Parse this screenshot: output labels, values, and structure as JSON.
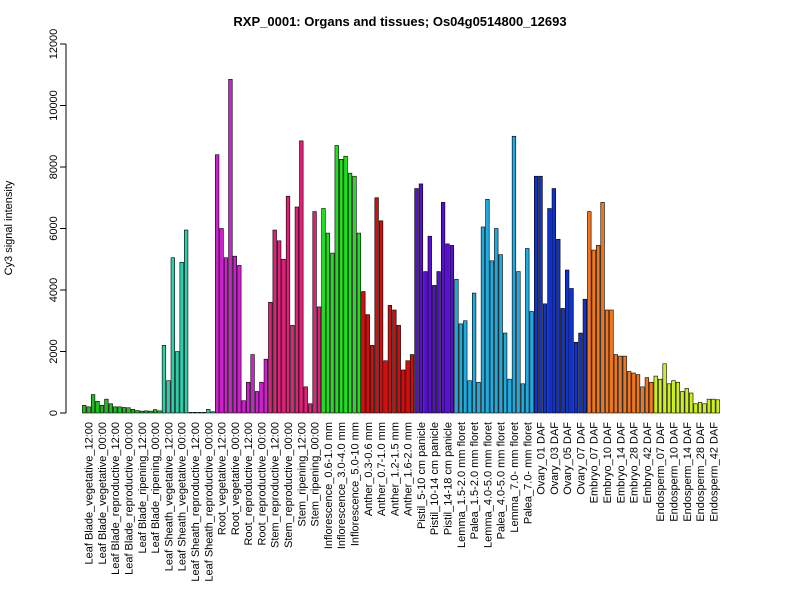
{
  "chart_data": {
    "type": "bar",
    "title": "RXP_0001: Organs and tissues; Os04g0514800_12693",
    "ylabel": "Cy3 signal intensity",
    "xlabel": "",
    "ylim": [
      0,
      12000
    ],
    "yticks": [
      0,
      2000,
      4000,
      6000,
      8000,
      10000,
      12000
    ],
    "ytick_labels": [
      "0",
      "2000",
      "4000",
      "6000",
      "8000",
      "10000",
      "12000"
    ],
    "grid": false,
    "groups": [
      {
        "label": "Leaf Blade_vegetative_12:00",
        "color": "#22bb22",
        "values": [
          250,
          200,
          600
        ]
      },
      {
        "label": "Leaf Blade_vegetative_00:00",
        "color": "#22bb22",
        "values": [
          380,
          250,
          450
        ]
      },
      {
        "label": "Leaf Blade_reproductive_12:00",
        "color": "#22bb22",
        "values": [
          300,
          200,
          200
        ]
      },
      {
        "label": "Leaf Blade_reproductive_00:00",
        "color": "#22bb22",
        "values": [
          180,
          170,
          120
        ]
      },
      {
        "label": "Leaf Blade_ripening_12:00",
        "color": "#22bb22",
        "values": [
          80,
          60,
          70
        ]
      },
      {
        "label": "Leaf Blade_ripening_00:00",
        "color": "#22bb22",
        "values": [
          60,
          110,
          70
        ]
      },
      {
        "label": "Leaf Sheath_vegetative_12:00",
        "color": "#33ccaa",
        "values": [
          2200,
          1050,
          5050
        ]
      },
      {
        "label": "Leaf Sheath_vegetative_00:00",
        "color": "#33ccaa",
        "values": [
          2000,
          4900,
          5950
        ]
      },
      {
        "label": "Leaf Sheath_reproductive_12:00",
        "color": "#33ccaa",
        "values": [
          20,
          20,
          20
        ]
      },
      {
        "label": "Leaf Sheath_reproductive_00:00",
        "color": "#33ccaa",
        "values": [
          20,
          120,
          40
        ]
      },
      {
        "label": "Root_vegetative_12:00",
        "color": "#cc22cc",
        "values": [
          8400,
          6000,
          5050
        ]
      },
      {
        "label": "Root_vegetative_00:00",
        "color": "#cc22cc",
        "values": [
          10850,
          5100,
          4800
        ]
      },
      {
        "label": "Root_reproductive_12:00",
        "color": "#cc22cc",
        "values": [
          400,
          1000,
          1900
        ]
      },
      {
        "label": "Root_reproductive_00:00",
        "color": "#cc22cc",
        "values": [
          700,
          1000,
          1750
        ]
      },
      {
        "label": "Stem_reproductive_12:00",
        "color": "#dd2277",
        "values": [
          3600,
          5950,
          5600
        ]
      },
      {
        "label": "Stem_reproductive_00:00",
        "color": "#dd2277",
        "values": [
          5000,
          7050,
          2850
        ]
      },
      {
        "label": "Stem_ripening_12:00",
        "color": "#dd2277",
        "values": [
          6700,
          8850,
          850
        ]
      },
      {
        "label": "Stem_ripening_00:00",
        "color": "#dd2277",
        "values": [
          300,
          6550,
          3450
        ]
      },
      {
        "label": "Inflorescence_0.6-1.0 mm",
        "color": "#22dd22",
        "values": [
          6650,
          5850,
          5200
        ]
      },
      {
        "label": "Inflorescence_3.0-4.0 mm",
        "color": "#22dd22",
        "values": [
          8700,
          8250,
          8350
        ]
      },
      {
        "label": "Inflorescence_5.0-10 mm",
        "color": "#22dd22",
        "values": [
          7800,
          7700,
          5850
        ]
      },
      {
        "label": "Anther_0.3-0.6 mm",
        "color": "#cc1111",
        "values": [
          3950,
          3200,
          2200
        ]
      },
      {
        "label": "Anther_0.7-1.0 mm",
        "color": "#cc1111",
        "values": [
          7000,
          6250,
          1700
        ]
      },
      {
        "label": "Anther_1.2-1.5 mm",
        "color": "#cc1111",
        "values": [
          3500,
          3350,
          2850
        ]
      },
      {
        "label": "Anther_1.6-2.0 mm",
        "color": "#cc1111",
        "values": [
          1400,
          1700,
          1900
        ]
      },
      {
        "label": "Pistil_5-10 cm panicle",
        "color": "#5511cc",
        "values": [
          7300,
          7450,
          4600
        ]
      },
      {
        "label": "Pistil_10-14 cm panicle",
        "color": "#5511cc",
        "values": [
          5750,
          4150,
          4600
        ]
      },
      {
        "label": "Pistil_14-18 cm panicle",
        "color": "#5511cc",
        "values": [
          6850,
          5500,
          5450
        ]
      },
      {
        "label": "Lemma_1.5-2.0 mm floret",
        "color": "#22aadd",
        "values": [
          4350,
          2900,
          3000
        ]
      },
      {
        "label": "Palea_1.5-2.0 mm floret",
        "color": "#22aadd",
        "values": [
          1050,
          3900,
          1000
        ]
      },
      {
        "label": "Lemma_4.0-5.0 mm floret",
        "color": "#22aadd",
        "values": [
          6050,
          6950,
          4950
        ]
      },
      {
        "label": "Palea_4.0-5.0 mm floret",
        "color": "#22aadd",
        "values": [
          6000,
          5150,
          2600
        ]
      },
      {
        "label": "Lemma_7.0- mm floret",
        "color": "#22aadd",
        "values": [
          1100,
          9000,
          4600
        ]
      },
      {
        "label": "Palea_7.0- mm floret",
        "color": "#22aadd",
        "values": [
          950,
          5350,
          3300
        ]
      },
      {
        "label": "Ovary_01 DAF",
        "color": "#1133cc",
        "values": [
          7700,
          7700,
          3550
        ]
      },
      {
        "label": "Ovary_03 DAF",
        "color": "#1133cc",
        "values": [
          6650,
          7300,
          5650
        ]
      },
      {
        "label": "Ovary_05 DAF",
        "color": "#1133cc",
        "values": [
          3400,
          4650,
          4050
        ]
      },
      {
        "label": "Ovary_07 DAF",
        "color": "#1133cc",
        "values": [
          2300,
          2600,
          3700
        ]
      },
      {
        "label": "Embryo_07 DAF",
        "color": "#ee7722",
        "values": [
          6550,
          5300,
          5450
        ]
      },
      {
        "label": "Embryo_10 DAF",
        "color": "#ee7722",
        "values": [
          6850,
          3350,
          3350
        ]
      },
      {
        "label": "Embryo_14 DAF",
        "color": "#ee7722",
        "values": [
          1900,
          1850,
          1850
        ]
      },
      {
        "label": "Embryo_28 DAF",
        "color": "#ee7722",
        "values": [
          1350,
          1300,
          1250
        ]
      },
      {
        "label": "Embryo_42 DAF",
        "color": "#ee7722",
        "values": [
          850,
          1150,
          1000
        ]
      },
      {
        "label": "Endosperm_07 DAF",
        "color": "#ccee22",
        "values": [
          1200,
          1100,
          1600
        ]
      },
      {
        "label": "Endosperm_10 DAF",
        "color": "#ccee22",
        "values": [
          950,
          1050,
          1000
        ]
      },
      {
        "label": "Endosperm_14 DAF",
        "color": "#ccee22",
        "values": [
          700,
          800,
          650
        ]
      },
      {
        "label": "Endosperm_28 DAF",
        "color": "#ccee22",
        "values": [
          300,
          350,
          300
        ]
      },
      {
        "label": "Endosperm_42 DAF",
        "color": "#ccee22",
        "values": [
          450,
          450,
          430
        ]
      }
    ]
  }
}
